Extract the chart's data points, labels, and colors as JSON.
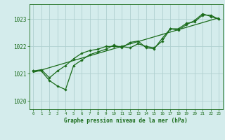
{
  "title": "Graphe pression niveau de la mer (hPa)",
  "background_color": "#d4ecec",
  "grid_color": "#b0d0d0",
  "line_color": "#1a6b1a",
  "xlim": [
    -0.5,
    23.5
  ],
  "ylim": [
    1019.7,
    1023.55
  ],
  "yticks": [
    1020,
    1021,
    1022,
    1023
  ],
  "xticks": [
    0,
    1,
    2,
    3,
    4,
    5,
    6,
    7,
    8,
    9,
    10,
    11,
    12,
    13,
    14,
    15,
    16,
    17,
    18,
    19,
    20,
    21,
    22,
    23
  ],
  "series1": [
    [
      0,
      1021.1
    ],
    [
      1,
      1021.15
    ],
    [
      2,
      1020.85
    ],
    [
      3,
      1021.1
    ],
    [
      4,
      1021.3
    ],
    [
      5,
      1021.55
    ],
    [
      6,
      1021.75
    ],
    [
      7,
      1021.85
    ],
    [
      8,
      1021.9
    ],
    [
      9,
      1022.0
    ],
    [
      10,
      1022.0
    ],
    [
      11,
      1022.0
    ],
    [
      12,
      1021.95
    ],
    [
      13,
      1022.1
    ],
    [
      14,
      1022.0
    ],
    [
      15,
      1021.95
    ],
    [
      16,
      1022.2
    ],
    [
      17,
      1022.65
    ],
    [
      18,
      1022.65
    ],
    [
      19,
      1022.85
    ],
    [
      20,
      1022.9
    ],
    [
      21,
      1023.15
    ],
    [
      22,
      1023.15
    ],
    [
      23,
      1023.0
    ]
  ],
  "series2": [
    [
      0,
      1021.1
    ],
    [
      1,
      1021.1
    ],
    [
      2,
      1020.75
    ],
    [
      3,
      1020.55
    ],
    [
      4,
      1020.42
    ],
    [
      5,
      1021.3
    ],
    [
      6,
      1021.5
    ],
    [
      7,
      1021.7
    ],
    [
      8,
      1021.8
    ],
    [
      9,
      1021.9
    ],
    [
      10,
      1022.05
    ],
    [
      11,
      1021.95
    ],
    [
      12,
      1022.15
    ],
    [
      13,
      1022.2
    ],
    [
      14,
      1021.95
    ],
    [
      15,
      1021.92
    ],
    [
      16,
      1022.3
    ],
    [
      17,
      1022.65
    ],
    [
      18,
      1022.6
    ],
    [
      19,
      1022.8
    ],
    [
      20,
      1022.95
    ],
    [
      21,
      1023.2
    ],
    [
      22,
      1023.1
    ],
    [
      23,
      1023.0
    ]
  ],
  "trend_line": [
    [
      0,
      1021.05
    ],
    [
      23,
      1023.05
    ]
  ]
}
